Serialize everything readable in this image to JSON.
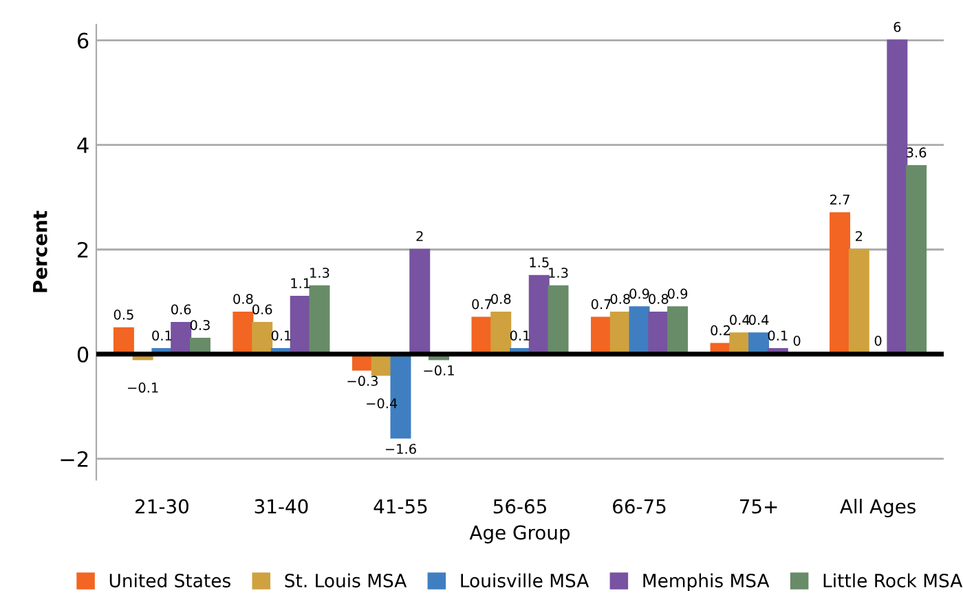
{
  "chart_data": {
    "type": "bar",
    "xlabel": "Age Group",
    "ylabel": "Percent",
    "categories": [
      "21-30",
      "31-40",
      "41-55",
      "56-65",
      "66-75",
      "75+",
      "All Ages"
    ],
    "series": [
      {
        "name": "United States",
        "color": "#f26522",
        "values": [
          0.5,
          0.8,
          -0.3,
          0.7,
          0.7,
          0.2,
          2.7
        ]
      },
      {
        "name": "St. Louis MSA",
        "color": "#cfa23f",
        "values": [
          -0.1,
          0.6,
          -0.4,
          0.8,
          0.8,
          0.4,
          2
        ]
      },
      {
        "name": "Louisville MSA",
        "color": "#3f7fc1",
        "values": [
          0.1,
          0.1,
          -1.6,
          0.1,
          0.9,
          0.4,
          0
        ]
      },
      {
        "name": "Memphis MSA",
        "color": "#7753a1",
        "values": [
          0.6,
          1.1,
          2,
          1.5,
          0.8,
          0.1,
          6
        ]
      },
      {
        "name": "Little Rock MSA",
        "color": "#688c68",
        "values": [
          0.3,
          1.3,
          -0.1,
          1.3,
          0.9,
          0,
          3.6
        ]
      }
    ],
    "ylim": [
      -2.4,
      6.3
    ],
    "yticks": [
      {
        "value": -2,
        "label": "−2"
      },
      0,
      2,
      4,
      6
    ],
    "grid": "y",
    "legend": "bottom",
    "data_labels": true,
    "ref_lines": [
      {
        "axis": "y",
        "value": 0,
        "color": "#000000"
      }
    ]
  }
}
